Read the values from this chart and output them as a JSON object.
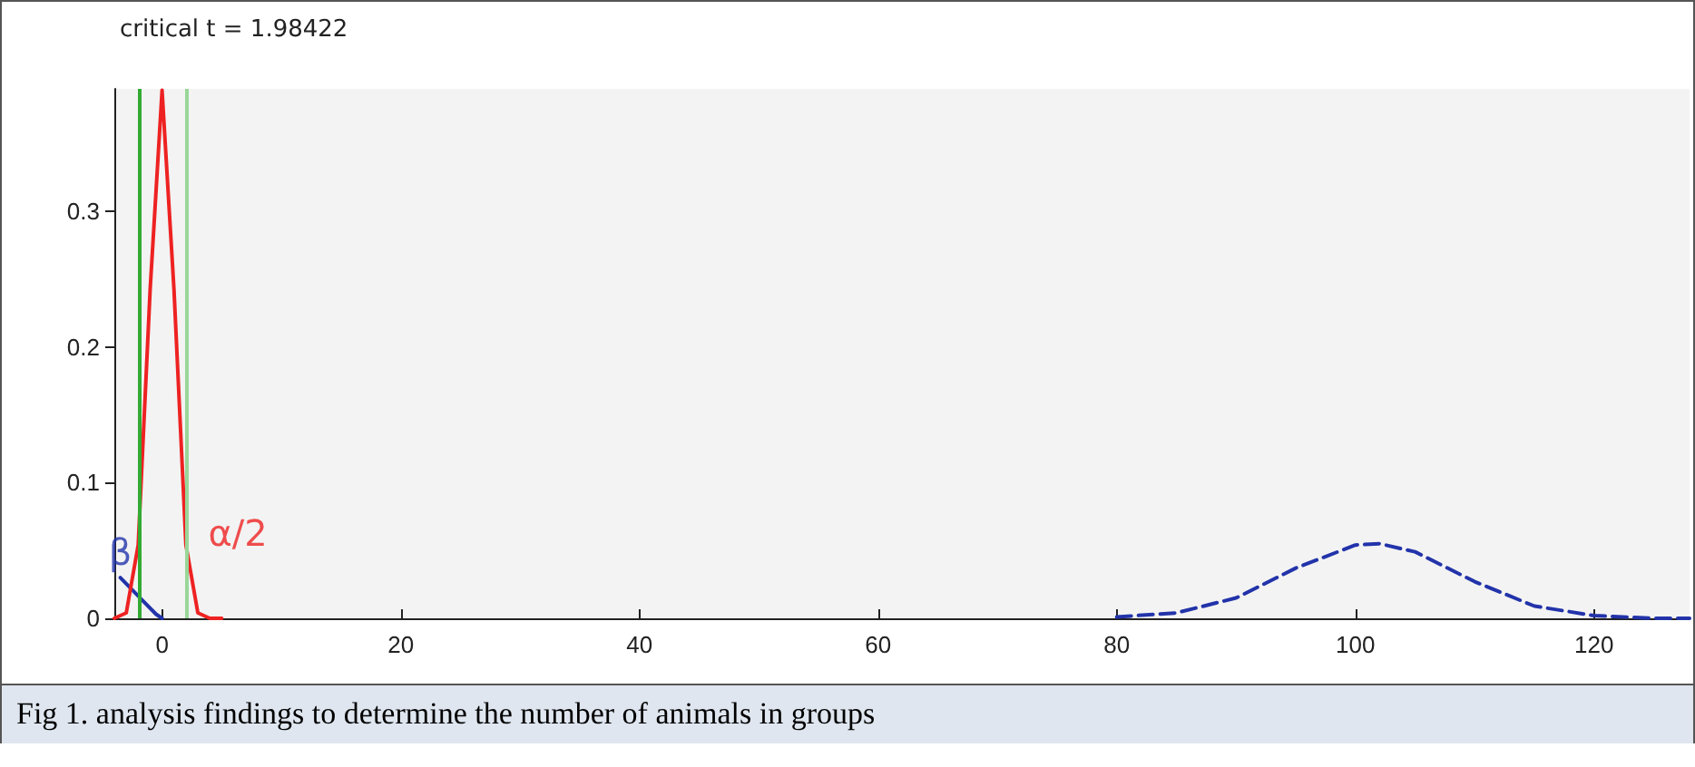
{
  "chart_data": {
    "type": "line",
    "title": "critical t = 1.98422",
    "xlim": [
      -4,
      128
    ],
    "xticks": [
      0,
      20,
      40,
      60,
      80,
      100,
      120
    ],
    "ylim": [
      0,
      0.39
    ],
    "yticks": [
      0,
      0.1,
      0.2,
      0.3
    ],
    "grid": false,
    "marker": "none",
    "series": [
      {
        "color": "#2233aa",
        "x": [
          -3.5,
          -2.5,
          -1.5,
          -0.5,
          0
        ],
        "values": [
          0.03,
          0.021,
          0.012,
          0.003,
          0
        ]
      },
      {
        "color": "#ee2222",
        "x": [
          -4,
          -3,
          -2,
          -1,
          0,
          1,
          2,
          3,
          4,
          5
        ],
        "values": [
          0,
          0.004,
          0.054,
          0.242,
          0.389,
          0.242,
          0.054,
          0.004,
          0,
          0
        ]
      },
      {
        "color": "#2233aa",
        "line_style": "dashed",
        "x": [
          80,
          85,
          90,
          95,
          100,
          102,
          105,
          110,
          115,
          120,
          125,
          128
        ],
        "values": [
          0.001,
          0.004,
          0.015,
          0.037,
          0.054,
          0.055,
          0.049,
          0.027,
          0.009,
          0.002,
          0,
          0
        ]
      }
    ],
    "ref_lines": [
      {
        "axis": "x",
        "value": -1.98422,
        "color": "#33aa33"
      },
      {
        "axis": "x",
        "value": 1.98422,
        "color": "#99d699"
      }
    ],
    "annotations": [
      {
        "text": "β",
        "x": -3.5,
        "y": 0.03
      },
      {
        "text": "α/2",
        "x": 3,
        "y": 0.004
      },
      "Fig 1. analysis findings to determine the number of animals in groups"
    ]
  }
}
